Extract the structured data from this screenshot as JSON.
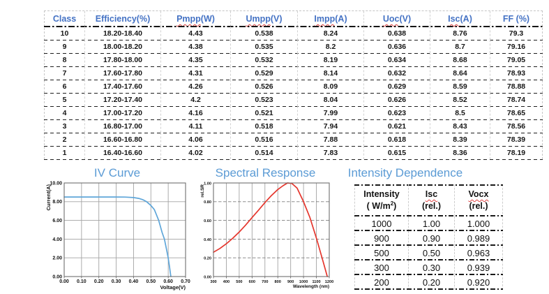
{
  "colors": {
    "header_blue": "#4472C4",
    "title_blue": "#5B9BD5",
    "iv_curve_blue": "#5fa6d9",
    "spectral_curve_red": "#e5352c",
    "squiggle_red": "#e04040"
  },
  "class_table": {
    "headers": [
      {
        "label": "Class"
      },
      {
        "label": "Efficiency(%)"
      },
      {
        "label": "Pmpp (W)",
        "squiggle": "Pmpp"
      },
      {
        "label": "Umpp (V)",
        "squiggle": "Umpp"
      },
      {
        "label": "Impp (A)",
        "squiggle": "Impp"
      },
      {
        "label": "Uoc (V)",
        "squiggle": "Uoc"
      },
      {
        "label": "Isc (A)",
        "squiggle": "Isc"
      },
      {
        "label": "FF (%)"
      }
    ],
    "rows": [
      [
        "10",
        "18.20-18.40",
        "4.43",
        "0.538",
        "8.24",
        "0.638",
        "8.76",
        "79.3"
      ],
      [
        "9",
        "18.00-18.20",
        "4.38",
        "0.535",
        "8.2",
        "0.636",
        "8.7",
        "79.16"
      ],
      [
        "8",
        "17.80-18.00",
        "4.35",
        "0.532",
        "8.19",
        "0.634",
        "8.68",
        "79.05"
      ],
      [
        "7",
        "17.60-17.80",
        "4.31",
        "0.529",
        "8.14",
        "0.632",
        "8.64",
        "78.93"
      ],
      [
        "6",
        "17.40-17.60",
        "4.26",
        "0.526",
        "8.09",
        "0.629",
        "8.59",
        "78.88"
      ],
      [
        "5",
        "17.20-17.40",
        "4.2",
        "0.523",
        "8.04",
        "0.626",
        "8.52",
        "78.74"
      ],
      [
        "4",
        "17.00-17.20",
        "4.16",
        "0.521",
        "7.99",
        "0.623",
        "8.5",
        "78.65"
      ],
      [
        "3",
        "16.80-17.00",
        "4.11",
        "0.518",
        "7.94",
        "0.621",
        "8.43",
        "78.56"
      ],
      [
        "2",
        "16.60-16.80",
        "4.06",
        "0.516",
        "7.88",
        "0.618",
        "8.39",
        "78.39"
      ],
      [
        "1",
        "16.40-16.60",
        "4.02",
        "0.514",
        "7.83",
        "0.615",
        "8.36",
        "78.19"
      ]
    ]
  },
  "section_titles": {
    "iv": "IV Curve",
    "spectral": "Spectral Response",
    "intensity": "Intensity Dependence"
  },
  "chart_data": [
    {
      "type": "line",
      "title": "IV Curve",
      "xlabel": "Voltage(V)",
      "ylabel": "Current(A)",
      "xlim": [
        0,
        0.7
      ],
      "ylim": [
        0,
        10
      ],
      "xticks": [
        0,
        0.1,
        0.2,
        0.3,
        0.4,
        0.5,
        0.6,
        0.7
      ],
      "xtick_labels": [
        "0.00",
        "0.10",
        "0.20",
        "0.30",
        "0.40",
        "0.50",
        "0.60",
        "0.70"
      ],
      "yticks": [
        0,
        2,
        4,
        6,
        8,
        10
      ],
      "ytick_labels": [
        "0.00",
        "2.00",
        "4.00",
        "6.00",
        "8.00",
        "10.00"
      ],
      "grid": {
        "horizontal": "solid",
        "vertical": "solid"
      },
      "legend": "none",
      "series": [
        {
          "name": "IV curve",
          "color": "#5fa6d9",
          "points": [
            [
              0.0,
              8.5
            ],
            [
              0.1,
              8.5
            ],
            [
              0.2,
              8.5
            ],
            [
              0.3,
              8.5
            ],
            [
              0.35,
              8.49
            ],
            [
              0.4,
              8.44
            ],
            [
              0.43,
              8.35
            ],
            [
              0.455,
              8.2
            ],
            [
              0.475,
              8.0
            ],
            [
              0.5,
              7.6
            ],
            [
              0.52,
              7.15
            ],
            [
              0.545,
              6.0
            ],
            [
              0.565,
              4.7
            ],
            [
              0.578,
              4.0
            ],
            [
              0.59,
              2.9
            ],
            [
              0.6,
              2.0
            ],
            [
              0.608,
              1.0
            ],
            [
              0.615,
              0.0
            ]
          ]
        }
      ]
    },
    {
      "type": "line",
      "title": "Spectral Response",
      "xlabel": "Wavelength (nm)",
      "ylabel": "rel.SR",
      "xlim": [
        300,
        1200
      ],
      "ylim": [
        0,
        1
      ],
      "xticks": [
        300,
        400,
        500,
        600,
        700,
        800,
        900,
        1000,
        1100,
        1200
      ],
      "xtick_labels": [
        "300",
        "400",
        "500",
        "600",
        "700",
        "800",
        "900",
        "1000",
        "1100",
        "1200"
      ],
      "yticks": [
        0,
        0.2,
        0.4,
        0.6,
        0.8,
        1.0
      ],
      "ytick_labels": [
        "0.00",
        "0.20",
        "0.40",
        "0.60",
        "0.80",
        "1.00"
      ],
      "grid": {
        "horizontal": "dashed",
        "vertical": "solid"
      },
      "legend": "none",
      "series": [
        {
          "name": "relative spectral response",
          "color": "#e5352c",
          "points": [
            [
              300,
              0.26
            ],
            [
              350,
              0.3
            ],
            [
              400,
              0.35
            ],
            [
              450,
              0.41
            ],
            [
              500,
              0.475
            ],
            [
              550,
              0.55
            ],
            [
              600,
              0.63
            ],
            [
              650,
              0.71
            ],
            [
              700,
              0.79
            ],
            [
              750,
              0.865
            ],
            [
              800,
              0.93
            ],
            [
              840,
              0.97
            ],
            [
              875,
              1.0
            ],
            [
              910,
              0.995
            ],
            [
              950,
              0.945
            ],
            [
              1000,
              0.8
            ],
            [
              1050,
              0.63
            ],
            [
              1100,
              0.41
            ],
            [
              1150,
              0.17
            ],
            [
              1185,
              0.0
            ]
          ]
        }
      ]
    }
  ],
  "intensity_table": {
    "headers": [
      {
        "lines": [
          "Intensity",
          "( W/m²)"
        ]
      },
      {
        "label": "Isc(rel.)",
        "squiggle": "Isc"
      },
      {
        "label": "Vocx(rel.)",
        "squiggle": "Vocx"
      }
    ],
    "rows": [
      [
        "1000",
        "1.00",
        "1.000"
      ],
      [
        "900",
        "0.90",
        "0.989"
      ],
      [
        "500",
        "0.50",
        "0.963"
      ],
      [
        "300",
        "0.30",
        "0.939"
      ],
      [
        "200",
        "0.20",
        "0.920"
      ]
    ]
  }
}
